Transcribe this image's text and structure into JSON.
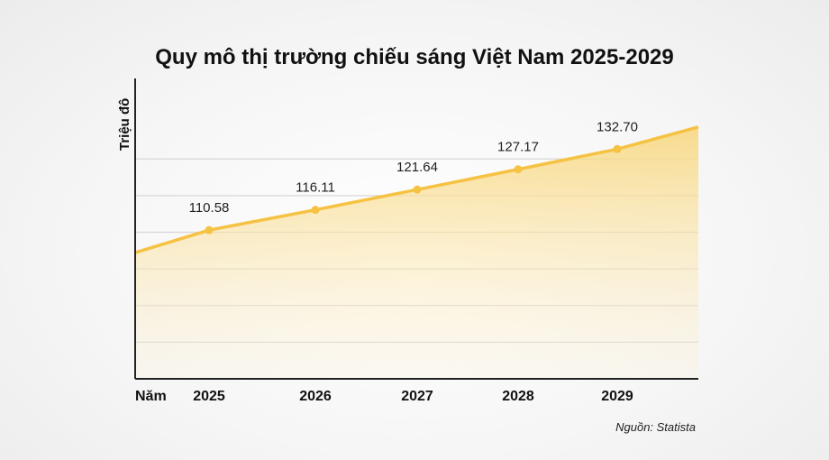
{
  "chart_data": {
    "type": "area",
    "title": "Quy mô thị trường chiếu sáng Việt Nam 2025-2029",
    "ylabel": "Triệu đô",
    "xlabel": "Năm",
    "categories": [
      "2025",
      "2026",
      "2027",
      "2028",
      "2029"
    ],
    "series": [
      {
        "values": [
          110.58,
          116.11,
          121.64,
          127.17,
          132.7
        ]
      }
    ],
    "ylim": [
      70,
      150
    ],
    "grid": true,
    "source": "Nguồn: Statista",
    "colors": {
      "line": "#f5c243",
      "fill_top": "#f8d67a",
      "fill_bottom": "#fdf3da",
      "grid": "#d7d7d7",
      "axis": "#222222"
    }
  }
}
